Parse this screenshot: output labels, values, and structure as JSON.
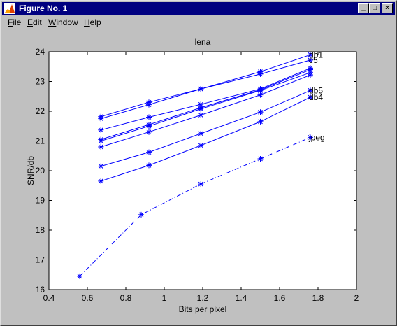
{
  "window": {
    "title": "Figure No. 1",
    "icon": "matlab-figure-icon",
    "buttons": {
      "minimize": "_",
      "maximize": "□",
      "close": "×"
    }
  },
  "menu": [
    {
      "label": "File",
      "accel": "F",
      "rest": "ile"
    },
    {
      "label": "Edit",
      "accel": "E",
      "rest": "dit"
    },
    {
      "label": "Window",
      "accel": "W",
      "rest": "indow"
    },
    {
      "label": "Help",
      "accel": "H",
      "rest": "elp"
    }
  ],
  "chart_data": {
    "type": "line",
    "title": "lena",
    "xlabel": "Bits per pixel",
    "ylabel": "SNR/db",
    "xlim": [
      0.4,
      2
    ],
    "ylim": [
      16,
      24
    ],
    "xticks": [
      "0.4",
      "0.6",
      "0.8",
      "1",
      "1.2",
      "1.4",
      "1.6",
      "1.8",
      "2"
    ],
    "yticks": [
      "16",
      "17",
      "18",
      "19",
      "20",
      "21",
      "22",
      "23",
      "24"
    ],
    "grid": false,
    "marker": "*",
    "color": "#0000ff",
    "series": [
      {
        "name": "db1",
        "x": [
          0.67,
          0.92,
          1.19,
          1.5,
          1.76
        ],
        "y": [
          21.82,
          22.3,
          22.75,
          23.33,
          23.9
        ]
      },
      {
        "name": "c5",
        "x": [
          0.67,
          0.92,
          1.19,
          1.5,
          1.76
        ],
        "y": [
          21.75,
          22.22,
          22.75,
          23.25,
          23.72
        ]
      },
      {
        "name": "",
        "x": [
          0.67,
          0.92,
          1.19,
          1.5,
          1.76
        ],
        "y": [
          21.37,
          21.8,
          22.23,
          22.75,
          23.45
        ]
      },
      {
        "name": "",
        "x": [
          0.67,
          0.92,
          1.19,
          1.5,
          1.76
        ],
        "y": [
          21.05,
          21.55,
          22.12,
          22.72,
          23.4
        ]
      },
      {
        "name": "",
        "x": [
          0.67,
          0.92,
          1.19,
          1.5,
          1.76
        ],
        "y": [
          21.0,
          21.5,
          22.08,
          22.7,
          23.3
        ]
      },
      {
        "name": "",
        "x": [
          0.67,
          0.92,
          1.19,
          1.5,
          1.76
        ],
        "y": [
          20.8,
          21.3,
          21.87,
          22.55,
          23.22
        ]
      },
      {
        "name": "db5",
        "x": [
          0.67,
          0.92,
          1.19,
          1.5,
          1.76
        ],
        "y": [
          20.15,
          20.62,
          21.25,
          21.97,
          22.7
        ]
      },
      {
        "name": "db4",
        "x": [
          0.67,
          0.92,
          1.19,
          1.5,
          1.76
        ],
        "y": [
          19.65,
          20.18,
          20.85,
          21.65,
          22.47
        ]
      },
      {
        "name": "jpeg",
        "style": "dashdot",
        "x": [
          0.56,
          0.88,
          1.19,
          1.5,
          1.76
        ],
        "y": [
          16.45,
          18.52,
          19.55,
          20.4,
          21.12
        ]
      }
    ]
  }
}
